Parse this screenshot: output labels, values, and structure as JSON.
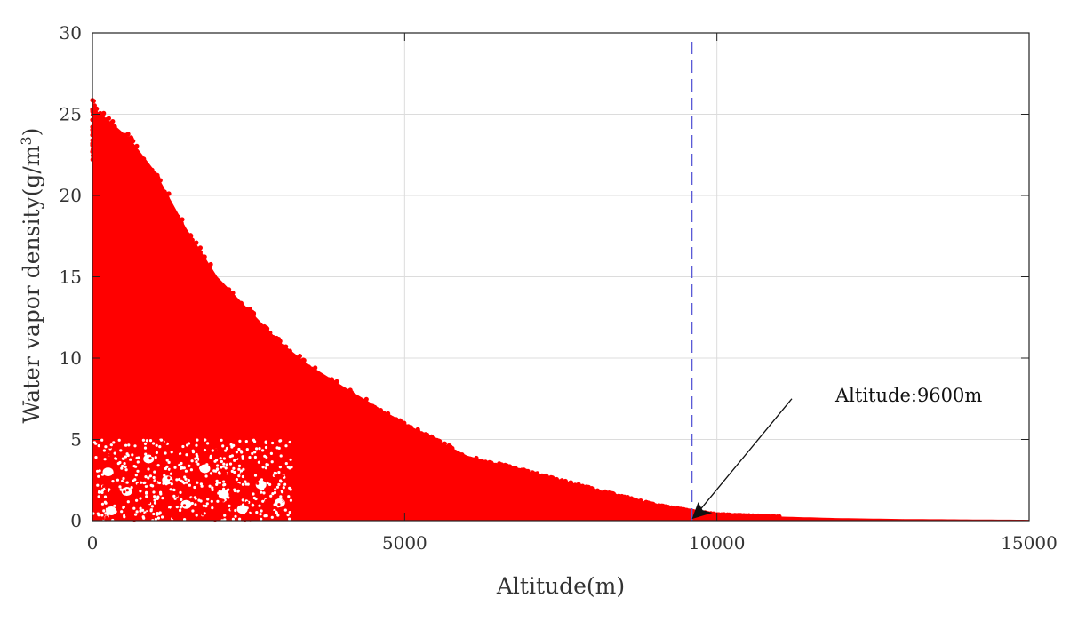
{
  "chart_data": {
    "type": "scatter",
    "title": "",
    "xlabel": "Altitude(m)",
    "ylabel_prefix": "Water vapor density(g/m",
    "ylabel_sup": "3",
    "ylabel_suffix": ")",
    "xlim": [
      0,
      15000
    ],
    "ylim": [
      0,
      30
    ],
    "xticks": [
      0,
      5000,
      10000,
      15000
    ],
    "xtick_labels": [
      "0",
      "5000",
      "10000",
      "15000"
    ],
    "yticks": [
      0,
      5,
      10,
      15,
      20,
      25,
      30
    ],
    "ytick_labels": [
      "0",
      "5",
      "10",
      "15",
      "20",
      "25",
      "30"
    ],
    "grid": true,
    "point_color": "#ff0000",
    "reference_line": {
      "x": 9600,
      "style": "dashed",
      "color": "#5a5ad6"
    },
    "annotation": {
      "text": "Altitude:9600m",
      "arrow_from": [
        11200,
        7.5
      ],
      "arrow_to": [
        9600,
        0.1
      ]
    },
    "envelope": {
      "x": [
        0,
        50,
        300,
        600,
        1000,
        1500,
        2000,
        2500,
        3000,
        3500,
        4000,
        5000,
        6000,
        7000,
        8000,
        9000,
        9600,
        10000,
        11000,
        12000,
        13000,
        15000
      ],
      "upper": [
        25.8,
        25.2,
        24.5,
        23.5,
        21.5,
        18.0,
        15.0,
        13.0,
        11.0,
        9.5,
        8.3,
        6.0,
        4.0,
        3.0,
        2.0,
        1.0,
        0.6,
        0.4,
        0.25,
        0.15,
        0.1,
        0.05
      ]
    },
    "series": [
      {
        "values_description_only": "dense scatter of observations between 0 and envelope"
      }
    ]
  }
}
